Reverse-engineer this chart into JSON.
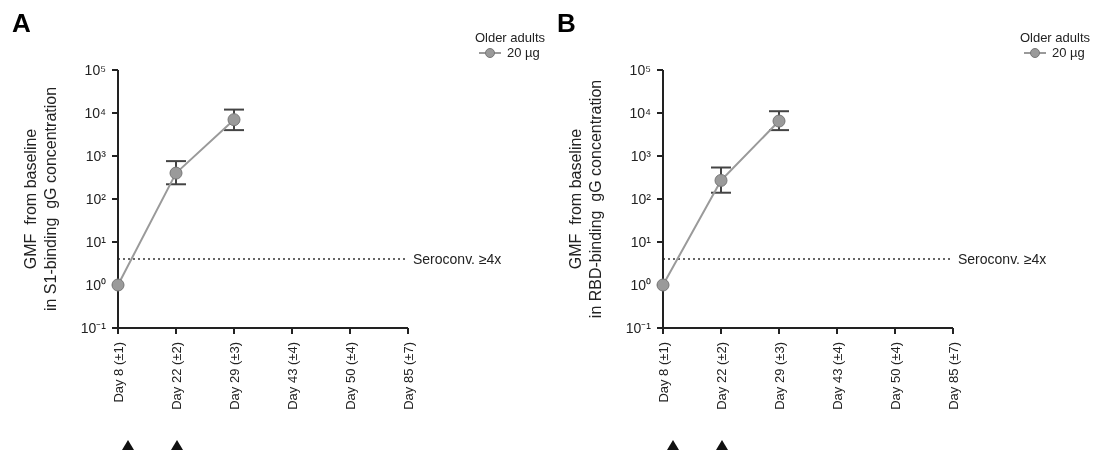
{
  "chart_data": [
    {
      "type": "line",
      "title": "A",
      "categories": [
        "Day 8 (±1)",
        "Day 22 (±2)",
        "Day 29 (±3)",
        "Day 43 (±4)",
        "Day 50 (±4)",
        "Day 85 (±7)"
      ],
      "series": [
        {
          "name": "20 µg",
          "color": "#9a9a9a",
          "values": [
            1,
            400,
            7000,
            null,
            null,
            null
          ],
          "errors": [
            null,
            [
              220,
              760
            ],
            [
              4000,
              12000
            ],
            null,
            null,
            null
          ]
        }
      ],
      "ylabel": "GMF  from baseline\nin S1-binding  gG concentration",
      "legend_title": "Older adults",
      "legend": "top right",
      "log": true,
      "ylim": [
        0.1,
        100000
      ],
      "yticks": [
        {
          "value": 0.1,
          "label": "10⁻¹"
        },
        {
          "value": 1,
          "label": "10⁰"
        },
        {
          "value": 10,
          "label": "10¹"
        },
        {
          "value": 100,
          "label": "10²"
        },
        {
          "value": 1000,
          "label": "10³"
        },
        {
          "value": 10000,
          "label": "10⁴"
        },
        {
          "value": 100000,
          "label": "10⁵"
        }
      ],
      "ref_lines": [
        {
          "axis": "y",
          "value": 4,
          "label": "Seroconv. ≥4x",
          "line_style": "dotted",
          "color": "#333333"
        }
      ],
      "marker": "circle",
      "grid": false
    },
    {
      "type": "line",
      "title": "B",
      "categories": [
        "Day 8 (±1)",
        "Day 22 (±2)",
        "Day 29 (±3)",
        "Day 43 (±4)",
        "Day 50 (±4)",
        "Day 85 (±7)"
      ],
      "series": [
        {
          "name": "20 µg",
          "color": "#9a9a9a",
          "values": [
            1,
            270,
            6500,
            null,
            null,
            null
          ],
          "errors": [
            null,
            [
              140,
              540
            ],
            [
              4000,
              11000
            ],
            null,
            null,
            null
          ]
        }
      ],
      "ylabel": "GMF  from baseline\nin RBD-binding  gG concentration",
      "legend_title": "Older adults",
      "legend": "top right",
      "log": true,
      "ylim": [
        0.1,
        100000
      ],
      "yticks": [
        {
          "value": 0.1,
          "label": "10⁻¹"
        },
        {
          "value": 1,
          "label": "10⁰"
        },
        {
          "value": 10,
          "label": "10¹"
        },
        {
          "value": 100,
          "label": "10²"
        },
        {
          "value": 1000,
          "label": "10³"
        },
        {
          "value": 10000,
          "label": "10⁴"
        },
        {
          "value": 100000,
          "label": "10⁵"
        }
      ],
      "ref_lines": [
        {
          "axis": "y",
          "value": 4,
          "label": "Seroconv. ≥4x",
          "line_style": "dotted",
          "color": "#333333"
        }
      ],
      "marker": "circle",
      "grid": false
    }
  ]
}
